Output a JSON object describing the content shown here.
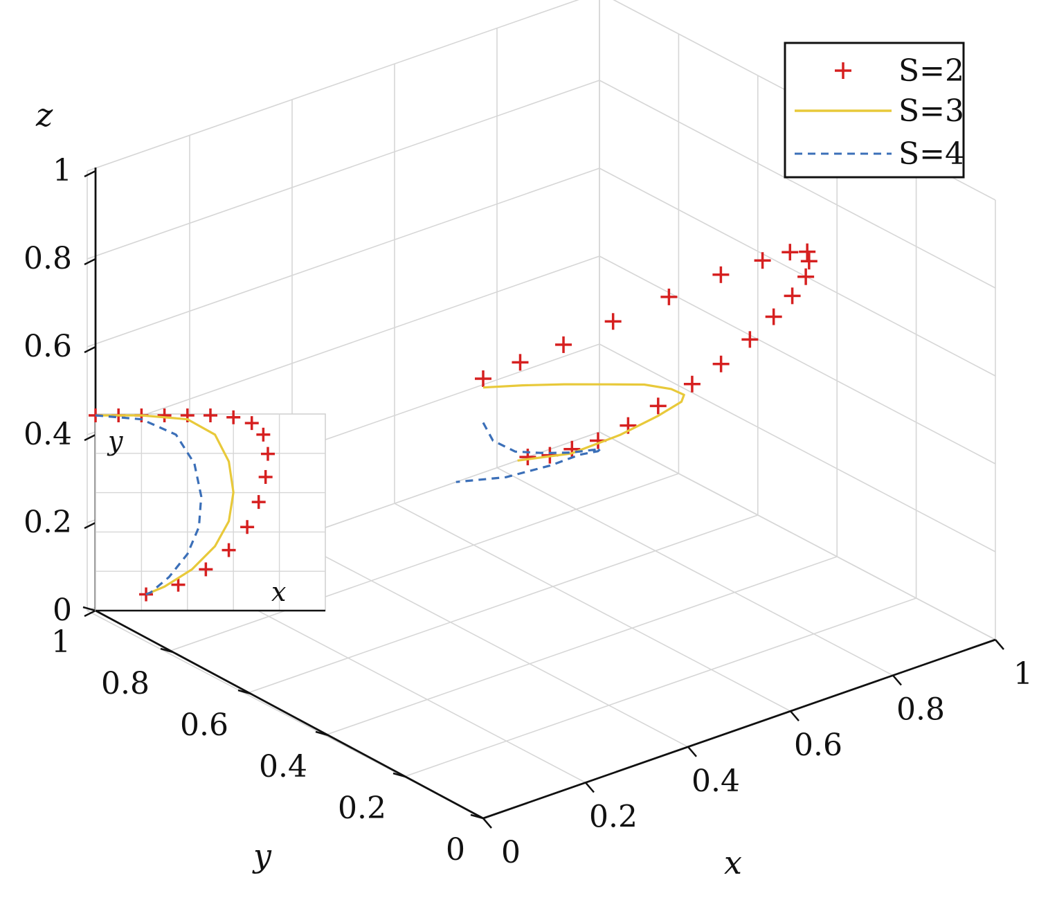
{
  "chart_data": [
    {
      "type": "line",
      "dimensions": "3d",
      "xlabel": "x",
      "ylabel": "y",
      "zlabel": "z",
      "xlim": [
        0,
        1
      ],
      "ylim": [
        0,
        1
      ],
      "zlim": [
        0,
        1
      ],
      "x_ticks": [
        "0",
        "0.2",
        "0.4",
        "0.6",
        "0.8",
        "1"
      ],
      "y_ticks": [
        "0",
        "0.2",
        "0.4",
        "0.6",
        "0.8",
        "1"
      ],
      "z_ticks": [
        "0",
        "0.2",
        "0.4",
        "0.6",
        "0.8",
        "1"
      ],
      "grid": true,
      "legend_position": "top-right",
      "legend_entries": [
        {
          "label": "S=2",
          "color": "#d62020",
          "style": "plus-markers"
        },
        {
          "label": "S=3",
          "color": "#e8c93a",
          "style": "solid"
        },
        {
          "label": "S=4",
          "color": "#3b6fb8",
          "style": "dashed"
        }
      ],
      "series": [
        {
          "name": "S=2",
          "x": [
            0.0,
            0.08,
            0.18,
            0.3,
            0.44,
            0.58,
            0.7,
            0.8,
            0.88,
            0.93,
            0.97,
            0.99,
            1.0,
            1.0,
            0.99,
            0.98,
            0.96,
            0.94,
            0.92,
            0.9,
            0.88,
            0.86
          ],
          "y": [
            0.0,
            0.01,
            0.03,
            0.06,
            0.1,
            0.15,
            0.2,
            0.26,
            0.32,
            0.38,
            0.44,
            0.5,
            0.56,
            0.62,
            0.68,
            0.74,
            0.8,
            0.85,
            0.9,
            0.94,
            0.97,
            1.0
          ],
          "z": [
            1.0,
            1.0,
            0.99,
            0.98,
            0.96,
            0.93,
            0.89,
            0.84,
            0.78,
            0.71,
            0.63,
            0.55,
            0.47,
            0.39,
            0.31,
            0.24,
            0.17,
            0.11,
            0.06,
            0.03,
            0.01,
            0.0
          ]
        },
        {
          "name": "S=3",
          "x": [
            0.0,
            0.1,
            0.22,
            0.36,
            0.5,
            0.63,
            0.74,
            0.82,
            0.86,
            0.87,
            0.86,
            0.84
          ],
          "y": [
            0.0,
            0.03,
            0.08,
            0.15,
            0.24,
            0.34,
            0.45,
            0.56,
            0.67,
            0.78,
            0.89,
            1.0
          ],
          "z": [
            0.98,
            0.93,
            0.86,
            0.77,
            0.67,
            0.56,
            0.45,
            0.35,
            0.25,
            0.15,
            0.06,
            0.0
          ]
        },
        {
          "name": "S=4",
          "x": [
            0.0,
            0.05,
            0.14,
            0.26,
            0.38,
            0.5,
            0.6,
            0.68,
            0.73,
            0.75,
            0.74,
            0.72
          ],
          "y": [
            0.0,
            0.04,
            0.1,
            0.18,
            0.27,
            0.37,
            0.48,
            0.59,
            0.7,
            0.8,
            0.9,
            1.0
          ],
          "z": [
            0.9,
            0.82,
            0.73,
            0.64,
            0.55,
            0.46,
            0.37,
            0.28,
            0.2,
            0.12,
            0.05,
            0.0
          ]
        }
      ]
    },
    {
      "type": "line",
      "role": "inset-xy-projection",
      "xlabel": "x",
      "ylabel": "y",
      "grid": true,
      "series": [
        {
          "name": "S=2",
          "x": [
            0.0,
            0.1,
            0.2,
            0.3,
            0.4,
            0.5,
            0.6,
            0.68,
            0.73,
            0.75,
            0.74,
            0.71,
            0.66,
            0.58,
            0.48,
            0.36,
            0.22
          ],
          "y": [
            1.0,
            1.0,
            1.0,
            1.0,
            1.0,
            1.0,
            0.99,
            0.96,
            0.9,
            0.8,
            0.68,
            0.55,
            0.42,
            0.3,
            0.2,
            0.12,
            0.07
          ]
        },
        {
          "name": "S=3",
          "x": [
            0.0,
            0.2,
            0.4,
            0.52,
            0.58,
            0.6,
            0.58,
            0.52,
            0.42,
            0.3,
            0.22
          ],
          "y": [
            1.0,
            1.0,
            0.98,
            0.9,
            0.76,
            0.6,
            0.45,
            0.32,
            0.2,
            0.11,
            0.07
          ]
        },
        {
          "name": "S=4",
          "x": [
            0.0,
            0.2,
            0.35,
            0.43,
            0.46,
            0.45,
            0.4,
            0.32,
            0.24,
            0.22
          ],
          "y": [
            1.0,
            0.98,
            0.9,
            0.75,
            0.58,
            0.42,
            0.28,
            0.16,
            0.08,
            0.07
          ]
        }
      ]
    }
  ]
}
